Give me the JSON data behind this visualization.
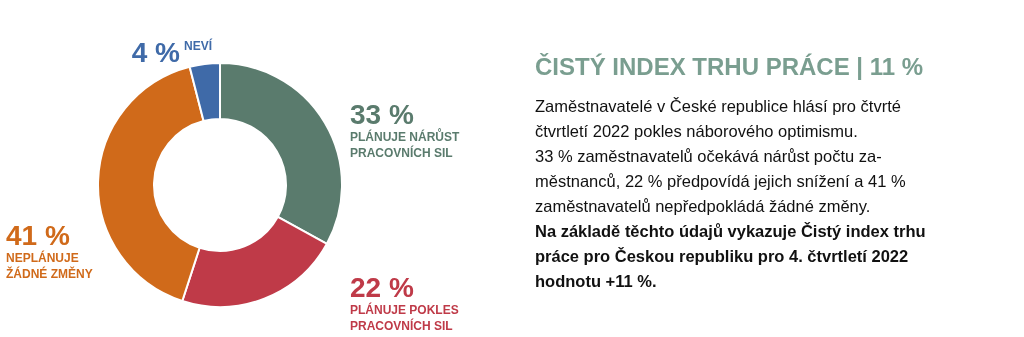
{
  "chart_data": {
    "type": "donut",
    "title": "ČISTÝ INDEX TRHU PRÁCE | 11 %",
    "categories": [
      "PLÁNUJE NÁRŮST PRACOVNÍCH SIL",
      "PLÁNUJE POKLES PRACOVNÍCH SIL",
      "NEPLÁNUJE ŽÁDNÉ ZMĚNY",
      "NEVÍ"
    ],
    "values": [
      33,
      22,
      41,
      4
    ],
    "value_labels": [
      "33 %",
      "22 %",
      "41 %",
      "4 %"
    ],
    "colors": [
      "#5a7b6d",
      "#bf3a48",
      "#d06a1a",
      "#3f6aa8"
    ],
    "annotations": [
      "Zaměstnavatelé v České republice hlásí pro čtvrté",
      "čtvrtletí 2022 pokles náborového optimismu.",
      "33 % zaměstnavatelů očekává nárůst počtu za-",
      "městnanců, 22 % předpovídá jejich snížení a 41 %",
      "zaměstnavatelů nepředpokládá žádné změny.",
      "Na základě těchto údajů vykazuje Čistý index trhu",
      "práce pro Českou republiku pro 4. čtvrtletí 2022",
      "hodnotu +11 %."
    ]
  }
}
